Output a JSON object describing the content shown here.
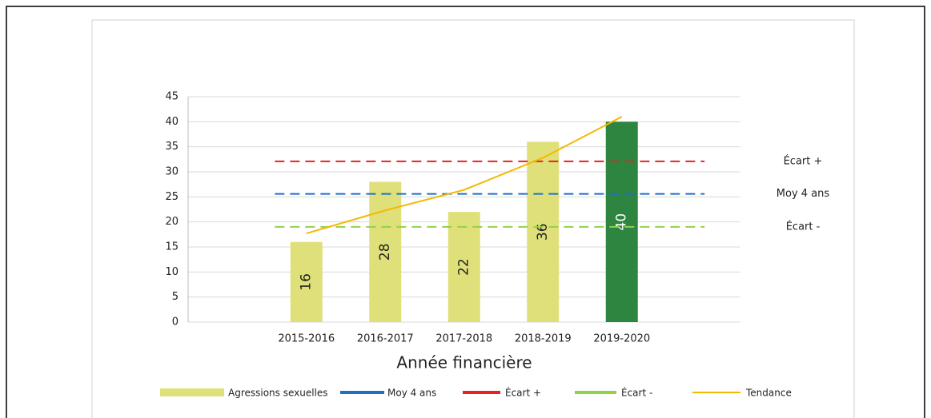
{
  "chart_data": {
    "type": "bar",
    "x_label": "Année financière",
    "categories": [
      "2015-2016",
      "2016-2017",
      "2017-2018",
      "2018-2019",
      "2019-2020"
    ],
    "ylim": [
      0,
      45
    ],
    "yticks": [
      0,
      5,
      10,
      15,
      20,
      25,
      30,
      35,
      40,
      45
    ],
    "grid": true,
    "series": [
      {
        "name": "Agressions sexuelles",
        "type": "bar",
        "colors": [
          "#dfe07a",
          "#dfe07a",
          "#dfe07a",
          "#dfe07a",
          "#2e8540"
        ],
        "values": [
          16,
          28,
          22,
          36,
          40
        ]
      },
      {
        "name": "Moy 4 ans",
        "type": "reference",
        "color": "#1f6fc5",
        "value": 25.6
      },
      {
        "name": "Écart +",
        "type": "reference",
        "color": "#e8231f",
        "value": 32.1
      },
      {
        "name": "Écart -",
        "type": "reference",
        "color": "#8fd24a",
        "value": 19
      },
      {
        "name": "Tendance",
        "type": "line",
        "color": "#f5b800",
        "values": [
          17.7,
          22.3,
          26.4,
          32.8,
          41
        ]
      }
    ]
  }
}
